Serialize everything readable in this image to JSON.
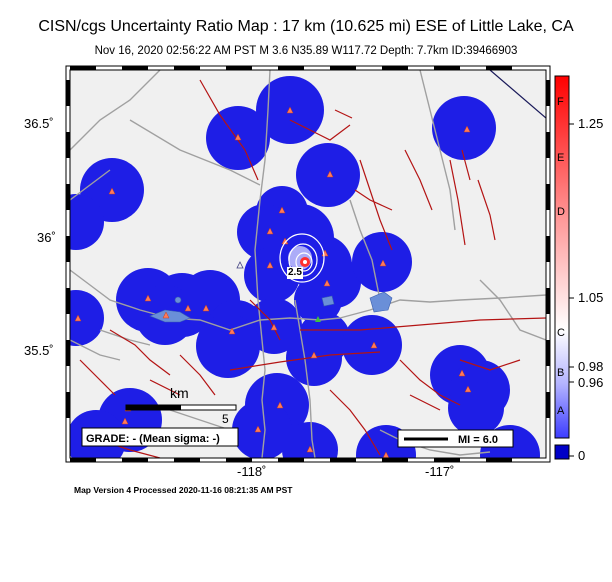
{
  "title": "CISN/cgs Uncertainty Ratio Map : 17 km (10.625 mi) ESE of Little Lake, CA",
  "subtitle": "Nov 16, 2020 02:56:22 AM PST   M 3.6   N35.89 W117.72   Depth: 7.7km   ID:39466903",
  "map": {
    "y_ticks": [
      "36.5˚",
      "36˚",
      "35.5˚"
    ],
    "x_ticks": [
      "-118˚",
      "-117˚"
    ],
    "scale_label": "km",
    "scale_value": "5",
    "grade_text": "GRADE: - (Mean sigma: -)",
    "mi_text": "MI = 6.0",
    "contour_label": "2.5"
  },
  "colorbar": {
    "letters": [
      "F",
      "E",
      "D",
      "C",
      "B",
      "A"
    ],
    "values": [
      "1.25",
      "1.05",
      "0.98",
      "0.96",
      "0"
    ],
    "colors": [
      "#ff0000",
      "#ffffff",
      "#0000c8"
    ]
  },
  "footer": "Map Version 4 Processed 2020-11-16 08:21:35 AM PST"
}
